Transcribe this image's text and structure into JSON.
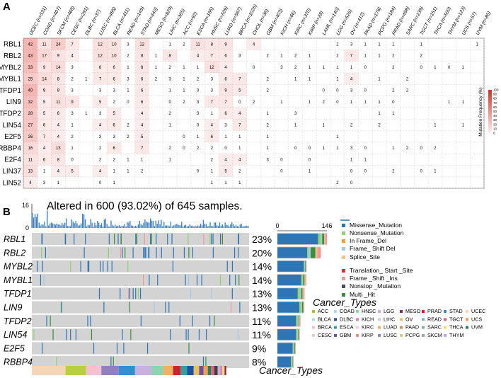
{
  "panel_a": {
    "label": "A",
    "cancers": [
      "UCEC (n=531)",
      "COAD (n=407)",
      "SKCM (n=468)",
      "CESC (n=291)",
      "DLBC (n=37)",
      "LUSC (n=485)",
      "BLCA (n=411)",
      "READ (n=149)",
      "STAD (n=443)",
      "MESO (n=829)",
      "LIHC (n=365)",
      "ACC (n=92)",
      "ESCA (n=185)",
      "HNSC (n=509)",
      "LUAD (n=567)",
      "BRCA (n=1026)",
      "CHOL (n=36)",
      "GBM (n=403)",
      "KICH (n=66)",
      "KIRC (n=370)",
      "KIRP (n=28)",
      "LAML (n=140)",
      "LGG (n=526)",
      "OV (n=412)",
      "PAAD (n=178)",
      "PCPG (n=184)",
      "PRAD (n=498)",
      "SARC (n=239)",
      "TGCT (n=151)",
      "THCA (n=500)",
      "THYM (n=123)",
      "UCS (n=57)",
      "UVM (n=80)"
    ],
    "genes": [
      "RBL1",
      "RBL2",
      "MYBL2",
      "MYBL1",
      "TFDP1",
      "LIN9",
      "TFDP2",
      "LIN54",
      "E2F5",
      "RBBP4",
      "E2F4",
      "LIN37",
      "LIN52"
    ],
    "matrix": [
      [
        "42",
        "11",
        "24",
        "7",
        "",
        "12",
        "10",
        "3",
        "12",
        "",
        "1",
        "2",
        "11",
        "8",
        "9",
        "",
        "4",
        "",
        "",
        "",
        "",
        "",
        "2",
        "3",
        "1",
        "1",
        "1",
        "",
        "1",
        "",
        "",
        "",
        "1"
      ],
      [
        "43",
        "17",
        "9",
        "4",
        "",
        "12",
        "10",
        "2",
        "8",
        "1",
        "8",
        "",
        "4",
        "7",
        "6",
        "3",
        "",
        "2",
        "1",
        "2",
        "1",
        "",
        "2",
        "7",
        "1",
        "1",
        "2",
        "",
        "2",
        "",
        "",
        "",
        ""
      ],
      [
        "33",
        "9",
        "14",
        "3",
        "",
        "6",
        "6",
        "1",
        "8",
        "1",
        "2",
        "1",
        "1",
        "12",
        "4",
        "",
        "0",
        "",
        "3",
        "2",
        "1",
        "1",
        "1",
        "1",
        "0",
        "",
        "2",
        "",
        "0",
        "1",
        "0",
        "1",
        ""
      ],
      [
        "25",
        "14",
        "8",
        "2",
        "1",
        "7",
        "6",
        "3",
        "6",
        "2",
        "3",
        "1",
        "2",
        "3",
        "6",
        "7",
        "",
        "2",
        "",
        "1",
        "1",
        "",
        "1",
        "4",
        "",
        "1",
        "",
        "2",
        "",
        "",
        "",
        "",
        ""
      ],
      [
        "40",
        "9",
        "9",
        "3",
        "",
        "3",
        "3",
        "1",
        "6",
        "",
        "1",
        "1",
        "0",
        "3",
        "9",
        "5",
        "",
        "2",
        "",
        "",
        "",
        "0",
        "0",
        "3",
        "0",
        "",
        "2",
        "2",
        "",
        "",
        "",
        "",
        ""
      ],
      [
        "32",
        "5",
        "11",
        "9",
        "",
        "5",
        "2",
        "0",
        "6",
        "",
        "0",
        "2",
        "3",
        "7",
        "7",
        "0",
        "2",
        "",
        "1",
        "",
        "1",
        "2",
        "0",
        "1",
        "1",
        "1",
        "0",
        "",
        "",
        "",
        "1",
        "1",
        ""
      ],
      [
        "28",
        "5",
        "6",
        "3",
        "1",
        "3",
        "5",
        "",
        "4",
        "",
        "2",
        "",
        "3",
        "1",
        "6",
        "4",
        "",
        "1",
        "",
        "3",
        "",
        "",
        "",
        "",
        "",
        "1",
        "1",
        "",
        "",
        "",
        "",
        "",
        ""
      ],
      [
        "27",
        "6",
        "4",
        "1",
        "",
        "4",
        "6",
        "2",
        "4",
        "",
        "1",
        "",
        "0",
        "4",
        "3",
        "7",
        "",
        "2",
        "",
        "1",
        "",
        "1",
        "",
        "2",
        "",
        "2",
        "",
        "",
        "",
        "1",
        "",
        "1",
        ""
      ],
      [
        "26",
        "7",
        "4",
        "2",
        "",
        "3",
        "3",
        "2",
        "5",
        "",
        "",
        "0",
        "1",
        "6",
        "1",
        "1",
        "",
        "1",
        "",
        "",
        "",
        "",
        "1",
        "",
        "",
        "",
        "",
        "",
        "",
        "",
        "",
        "",
        ""
      ],
      [
        "16",
        "4",
        "13",
        "1",
        "",
        "2",
        "6",
        "",
        "7",
        "",
        "2",
        "0",
        "2",
        "2",
        "0",
        "1",
        "",
        "1",
        "",
        "0",
        "0",
        "1",
        "1",
        "3",
        "0",
        "",
        "1",
        "2",
        "0",
        "2",
        "",
        "",
        ""
      ],
      [
        "11",
        "6",
        "8",
        "0",
        "",
        "2",
        "2",
        "1",
        "1",
        "",
        "1",
        "",
        "",
        "2",
        "4",
        "4",
        "",
        "3",
        "0",
        "",
        "0",
        "",
        "",
        "1",
        "1",
        "",
        "",
        "",
        "",
        "",
        "",
        "",
        ""
      ],
      [
        "13",
        "1",
        "4",
        "5",
        "",
        "4",
        "1",
        "1",
        "2",
        "",
        "",
        "",
        "0",
        "1",
        "5",
        "2",
        "",
        "",
        "0",
        "",
        "1",
        "",
        "",
        "0",
        "0",
        "",
        "2",
        "",
        "0",
        "1",
        "",
        "",
        ""
      ],
      [
        "4",
        "3",
        "1",
        "",
        "",
        "0",
        "1",
        "",
        "",
        "",
        "",
        "",
        "",
        "1",
        "1",
        "1",
        "",
        "",
        "",
        "",
        "",
        "",
        "2",
        "0",
        "",
        "",
        "",
        "",
        "",
        "",
        "",
        "",
        ""
      ]
    ],
    "legend_title": "Mutation Frequency (%)",
    "legend_ticks": [
      "100",
      "90",
      "80",
      "70",
      "60",
      "50",
      "40",
      "30",
      "20",
      "10",
      "0"
    ]
  },
  "panel_b": {
    "label": "B",
    "top_axis_max": "16",
    "top_axis_min": "0",
    "altered_text": "Altered in 600 (93.02%) of 645 samples.",
    "bar_axis_min": "0",
    "bar_axis_max": "146",
    "bar_max_value": 146,
    "genes": [
      {
        "name": "RBL1",
        "pct": "23%",
        "total": 146,
        "parts": [
          120,
          8,
          4,
          6,
          3,
          5
        ]
      },
      {
        "name": "RBL2",
        "pct": "20%",
        "total": 128,
        "parts": [
          88,
          4,
          6,
          14,
          6,
          10
        ]
      },
      {
        "name": "MYBL2",
        "pct": "14%",
        "total": 86,
        "parts": [
          78,
          2,
          2,
          2,
          1,
          1
        ]
      },
      {
        "name": "MYBL1",
        "pct": "14%",
        "total": 85,
        "parts": [
          70,
          4,
          2,
          4,
          3,
          2
        ]
      },
      {
        "name": "TFDP1",
        "pct": "13%",
        "total": 80,
        "parts": [
          60,
          6,
          4,
          4,
          3,
          3
        ]
      },
      {
        "name": "LIN9",
        "pct": "13%",
        "total": 79,
        "parts": [
          65,
          6,
          2,
          3,
          1,
          2
        ]
      },
      {
        "name": "TFDP2",
        "pct": "11%",
        "total": 68,
        "parts": [
          55,
          5,
          3,
          2,
          2,
          1
        ]
      },
      {
        "name": "LIN54",
        "pct": "11%",
        "total": 66,
        "parts": [
          55,
          4,
          2,
          2,
          2,
          1
        ]
      },
      {
        "name": "E2F5",
        "pct": "9%",
        "total": 54,
        "parts": [
          45,
          3,
          2,
          2,
          1,
          1
        ]
      },
      {
        "name": "RBBP4",
        "pct": "8%",
        "total": 48,
        "parts": [
          40,
          3,
          2,
          1,
          1,
          1
        ]
      }
    ],
    "mutation_legend": [
      {
        "label": "Missense_Mutation",
        "color": "#2e75b6"
      },
      {
        "label": "Nonsense_Mutation",
        "color": "#8fd46a"
      },
      {
        "label": "In Frame_Del",
        "color": "#f0a030"
      },
      {
        "label": "Frame_ Shift Del",
        "color": "#a6c8e8"
      },
      {
        "label": "Splice_Site",
        "color": "#f5c08a"
      },
      {
        "label": "Translation_ Start _Site",
        "color": "#e03030"
      },
      {
        "label": "Frame _Shift _Ins",
        "color": "#f29898"
      },
      {
        "label": "Nonstop _Mutation",
        "color": "#4a4a66"
      },
      {
        "label": "Multi _Hit",
        "color": "#3b8f3b"
      }
    ],
    "cancer_types_title": "Cancer_Types",
    "cancer_types_bottom": "Cancer_Types",
    "cancer_legend": [
      {
        "label": "ACC",
        "color": "#b8b830"
      },
      {
        "label": "COAD",
        "color": "#a8dcf0"
      },
      {
        "label": "HNSC",
        "color": "#8fd4b0"
      },
      {
        "label": "LGG",
        "color": "#c8b0d8"
      },
      {
        "label": "MESO",
        "color": "#8a2a5a"
      },
      {
        "label": "PRAD",
        "color": "#d02030"
      },
      {
        "label": "STAD",
        "color": "#3090d0"
      },
      {
        "label": "UCEC",
        "color": "#f5d5b8"
      },
      {
        "label": "BLCA",
        "color": "#b8d8f0"
      },
      {
        "label": "DLBC",
        "color": "#3050a0"
      },
      {
        "label": "KICH",
        "color": "#e080c0"
      },
      {
        "label": "LIHC",
        "color": "#d0d0d0"
      },
      {
        "label": "OV",
        "color": "#e8c060"
      },
      {
        "label": "READ",
        "color": "#8ab0d0"
      },
      {
        "label": "TGCT",
        "color": "#e06080"
      },
      {
        "label": "UCS",
        "color": "#f0a050"
      },
      {
        "label": "BRCA",
        "color": "#f5c0d0"
      },
      {
        "label": "ESCA",
        "color": "#30a0a0"
      },
      {
        "label": "KIRC",
        "color": "#f0d0e0"
      },
      {
        "label": "LUAD",
        "color": "#f0b060"
      },
      {
        "label": "PAAD",
        "color": "#d09060"
      },
      {
        "label": "SARC",
        "color": "#80b0a0"
      },
      {
        "label": "THCA",
        "color": "#f0e060"
      },
      {
        "label": "UVM",
        "color": "#208060"
      },
      {
        "label": "CESC",
        "color": "#f8c8c8"
      },
      {
        "label": "GBM",
        "color": "#7050a0"
      },
      {
        "label": "KIRP",
        "color": "#e09080"
      },
      {
        "label": "LUSC",
        "color": "#9080c0"
      },
      {
        "label": "PCPG",
        "color": "#d0d080"
      },
      {
        "label": "SKCM",
        "color": "#a0a0a0"
      },
      {
        "label": "THYM",
        "color": "#c0a0e0"
      }
    ],
    "cancer_band": [
      {
        "color": "#f5d5b8",
        "w": 0.155
      },
      {
        "color": "#b8d040",
        "w": 0.095
      },
      {
        "color": "#f5c0d0",
        "w": 0.07
      },
      {
        "color": "#9080c0",
        "w": 0.08
      },
      {
        "color": "#3090d0",
        "w": 0.075
      },
      {
        "color": "#c8b0e0",
        "w": 0.075
      },
      {
        "color": "#8fd4b0",
        "w": 0.055
      },
      {
        "color": "#f0b060",
        "w": 0.045
      },
      {
        "color": "#d02030",
        "w": 0.035
      },
      {
        "color": "#30a0a0",
        "w": 0.03
      },
      {
        "color": "#2050a0",
        "w": 0.03
      },
      {
        "color": "#e8c060",
        "w": 0.025
      },
      {
        "color": "#7050a0",
        "w": 0.02
      },
      {
        "color": "#f0a050",
        "w": 0.02
      },
      {
        "color": "#208060",
        "w": 0.015
      },
      {
        "color": "#e06080",
        "w": 0.015
      },
      {
        "color": "#404040",
        "w": 0.015
      },
      {
        "color": "#c8b0d8",
        "w": 0.012
      },
      {
        "color": "#e080c0",
        "w": 0.01
      },
      {
        "color": "#f0e060",
        "w": 0.01
      },
      {
        "color": "#8a2a5a",
        "w": 0.008
      }
    ]
  }
}
